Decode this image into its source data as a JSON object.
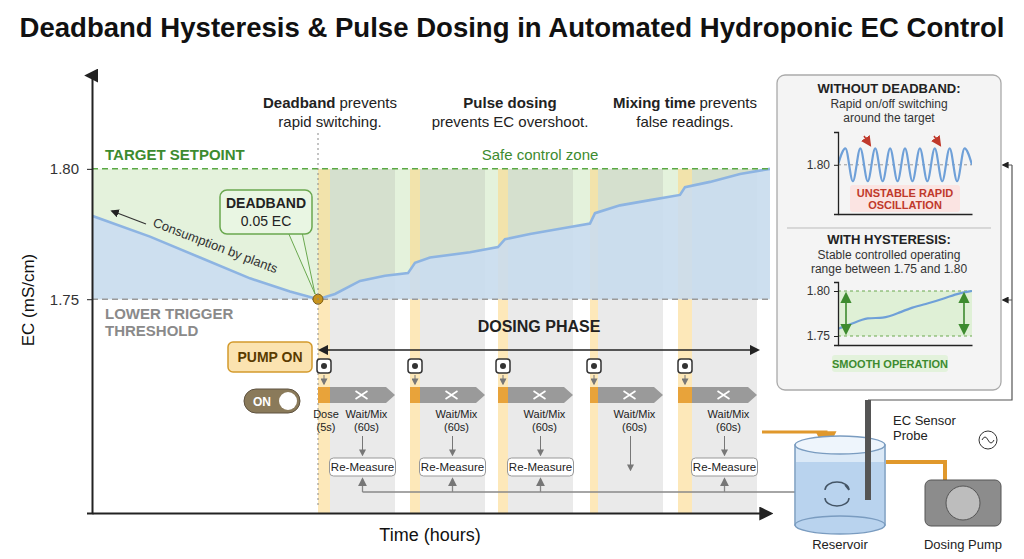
{
  "chart_data": [
    {
      "type": "line",
      "title": "Deadband Hysteresis & Pulse Dosing in Automated Hydroponic EC Control",
      "xlabel": "Time (hours)",
      "ylabel": "EC (mS/cm)",
      "x": [
        0,
        0.58,
        1.08,
        1.58,
        1.98,
        2.26,
        2.43,
        2.68,
        2.93,
        3.16,
        3.23,
        3.38,
        3.78,
        4.06,
        4.13,
        4.38,
        4.68,
        4.98,
        5.03,
        5.28,
        5.58,
        5.88,
        5.93,
        6.18,
        6.48,
        6.78
      ],
      "values": [
        1.782,
        1.774,
        1.766,
        1.758,
        1.753,
        1.75,
        1.752,
        1.757,
        1.759,
        1.76,
        1.764,
        1.766,
        1.768,
        1.77,
        1.773,
        1.775,
        1.777,
        1.779,
        1.783,
        1.786,
        1.788,
        1.79,
        1.793,
        1.795,
        1.798,
        1.8
      ],
      "color": "#8db4e2",
      "xlim": [
        0,
        6.78
      ],
      "ylim": [
        1.668,
        1.836
      ],
      "yticks": [
        1.75,
        {
          "value": 1.8,
          "label": "1.80"
        }
      ],
      "tick_labels": "y",
      "thresholds": {
        "target": {
          "value": 1.8,
          "label": "TARGET SETPOINT"
        },
        "lower": {
          "value": 1.75,
          "label": [
            "LOWER TRIGGER",
            "THRESHOLD"
          ]
        }
      },
      "zone_label": "Safe control zone",
      "deadband": {
        "title": "DEADBAND",
        "label": "0.05 EC"
      },
      "consumption_label": "Consumption by plants",
      "trigger": {
        "x": 2.26,
        "value": 1.75,
        "label": "PUMP ON",
        "switch": "ON"
      },
      "annotations": [
        {
          "x": 2.38,
          "lines": [
            [
              "Deadband",
              "prevents"
            ],
            [
              "rapid switching."
            ]
          ]
        },
        {
          "x": 4.18,
          "lines": [
            [
              "Pulse dosing"
            ],
            [
              "prevents EC overshoot."
            ]
          ]
        },
        {
          "x": 5.93,
          "lines": [
            [
              "Mixing time",
              "prevents"
            ],
            [
              "false readings."
            ]
          ]
        }
      ],
      "dosing_phase": {
        "label": "DOSING PHASE",
        "x": [
          2.26,
          6.68
        ]
      },
      "dose_windows": [
        [
          2.26,
          2.38
        ],
        [
          3.18,
          3.28
        ],
        [
          4.06,
          4.16
        ],
        [
          4.98,
          5.06
        ],
        [
          5.86,
          6.0
        ]
      ],
      "mix_windows": [
        [
          2.38,
          3.03
        ],
        [
          3.28,
          3.93
        ],
        [
          4.16,
          4.81
        ],
        [
          5.06,
          5.71
        ],
        [
          6.0,
          6.65
        ]
      ],
      "process": {
        "dose_label": [
          "Dose",
          "(5s)"
        ],
        "wait_label": [
          "Wait/Mix",
          "(60s)"
        ],
        "measure_label": "Re-Measure",
        "measure_after": [
          true,
          true,
          true,
          false,
          true
        ]
      }
    },
    {
      "type": "line",
      "title": "WITHOUT DEADBAND:",
      "subtitle": [
        "Rapid on/off switching",
        "around the target"
      ],
      "x": [
        0,
        1,
        2,
        3,
        4,
        5,
        6,
        7,
        8,
        9,
        10,
        11,
        12,
        13,
        14,
        15,
        16,
        17,
        18
      ],
      "values": [
        1.8,
        1.815,
        1.785,
        1.815,
        1.785,
        1.815,
        1.785,
        1.815,
        1.785,
        1.815,
        1.785,
        1.815,
        1.785,
        1.815,
        1.785,
        1.815,
        1.785,
        1.815,
        1.8
      ],
      "color": "#6fa0d8",
      "xlim": [
        0,
        18
      ],
      "ylim": [
        1.755,
        1.83
      ],
      "yticks": [
        {
          "value": 1.8,
          "label": "1.80"
        }
      ],
      "tick_labels": "y",
      "caption": [
        "UNSTABLE RAPID",
        "OSCILLATION"
      ]
    },
    {
      "type": "line",
      "title": "WITH HYSTERESIS:",
      "subtitle": [
        "Stable controlled operating",
        "range between 1.75 and 1.80"
      ],
      "x": [
        0,
        1,
        2,
        3,
        4,
        5,
        6,
        7,
        8,
        9
      ],
      "values": [
        1.758,
        1.764,
        1.771,
        1.769,
        1.775,
        1.782,
        1.786,
        1.791,
        1.797,
        1.8
      ],
      "color": "#6fa0d8",
      "xlim": [
        0,
        9
      ],
      "ylim": [
        1.74,
        1.81
      ],
      "yticks": [
        {
          "value": 1.8,
          "label": "1.80"
        },
        1.75
      ],
      "tick_labels": "y",
      "caption": [
        "SMOOTH OPERATION"
      ]
    }
  ],
  "diagram": {
    "reservoir": "Reservoir",
    "probe": [
      "EC Sensor",
      "Probe"
    ],
    "pump": "Dosing Pump"
  }
}
